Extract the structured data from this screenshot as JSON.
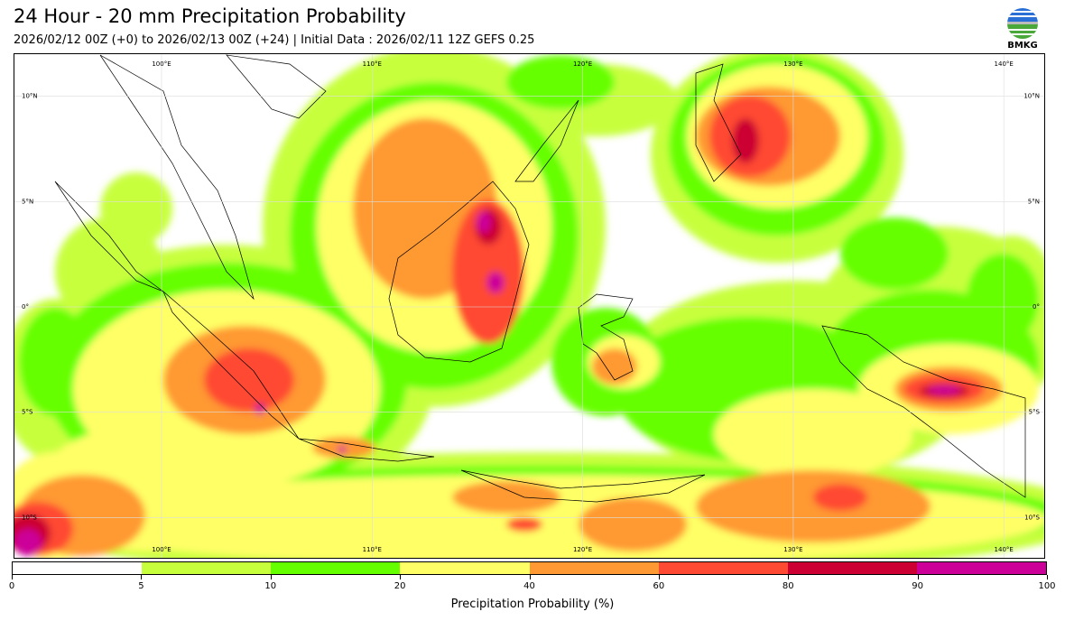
{
  "header": {
    "title": "24 Hour - 20 mm Precipitation Probability",
    "subtitle": "2026/02/12 00Z (+0) to 2026/02/13 00Z (+24) | Initial Data : 2026/02/11 12Z GEFS 0.25",
    "logo_text": "BMKG"
  },
  "map": {
    "lon_labels": [
      {
        "lon": 100,
        "text": "100°E"
      },
      {
        "lon": 110,
        "text": "110°E"
      },
      {
        "lon": 120,
        "text": "120°E"
      },
      {
        "lon": 130,
        "text": "130°E"
      },
      {
        "lon": 140,
        "text": "140°E"
      }
    ],
    "lat_labels": [
      {
        "lat": 10,
        "text": "10°N"
      },
      {
        "lat": 5,
        "text": "5°N"
      },
      {
        "lat": 0,
        "text": "0°"
      },
      {
        "lat": -5,
        "text": "5°S"
      },
      {
        "lat": -10,
        "text": "10°S"
      }
    ]
  },
  "colorbar": {
    "label": "Precipitation Probability (%)",
    "ticks": [
      "0",
      "5",
      "10",
      "20",
      "40",
      "60",
      "80",
      "90",
      "100"
    ],
    "colors": [
      "#ffffff",
      "#c8ff3c",
      "#66ff00",
      "#ffff66",
      "#ff9933",
      "#ff4a33",
      "#cc0033",
      "#cc0099"
    ]
  }
}
